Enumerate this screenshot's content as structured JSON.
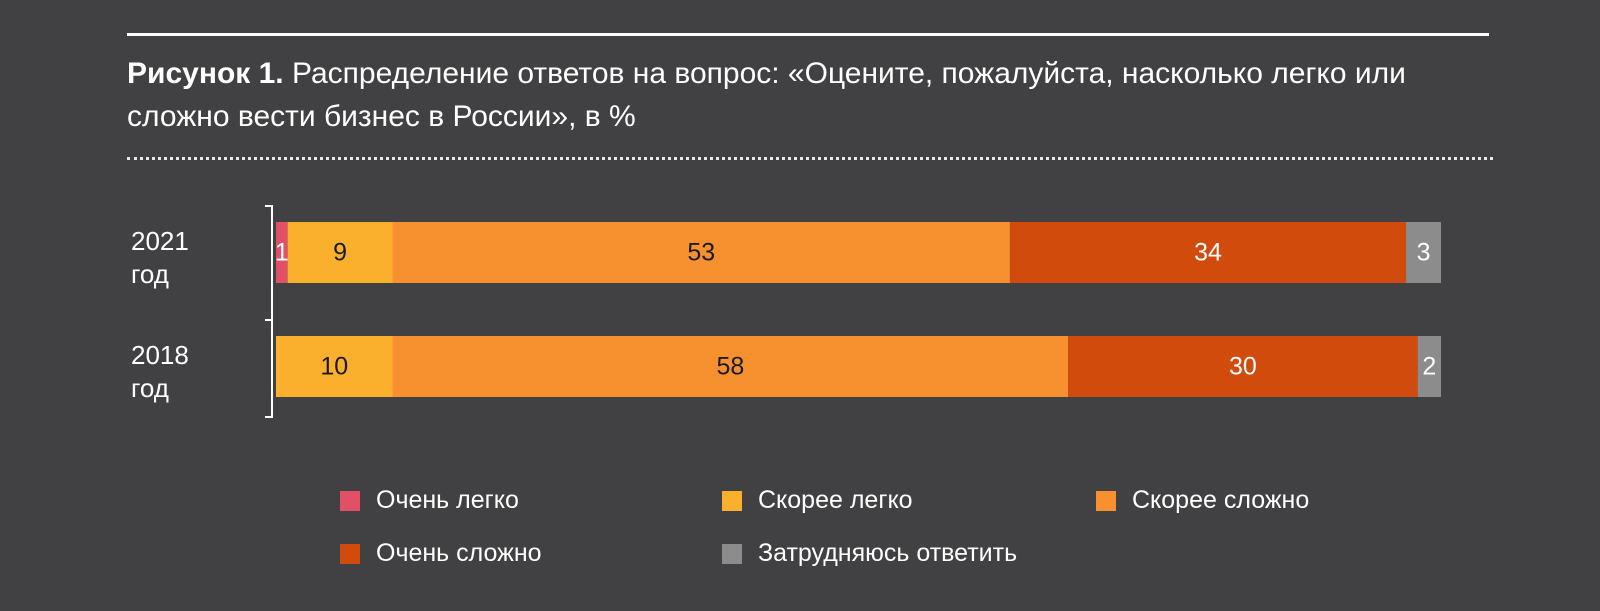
{
  "title": {
    "bold": "Рисунок 1.",
    "text": " Распределение ответов на вопрос: «Оцените, пожалуйста, насколько легко или сложно вести бизнес в России», в %"
  },
  "chart_data": {
    "type": "bar",
    "orientation": "horizontal-stacked-100",
    "categories": [
      [
        "2021",
        "год"
      ],
      [
        "2018",
        "год"
      ]
    ],
    "series": [
      {
        "name": "Очень легко",
        "color": "#e05066",
        "values": [
          1,
          0
        ]
      },
      {
        "name": "Скорее легко",
        "color": "#fbb02d",
        "values": [
          9,
          10
        ]
      },
      {
        "name": "Скорее сложно",
        "color": "#f7902f",
        "values": [
          53,
          58
        ]
      },
      {
        "name": "Очень сложно",
        "color": "#d14b0c",
        "values": [
          34,
          30
        ]
      },
      {
        "name": "Затрудняюсь ответить",
        "color": "#8c8c8c",
        "values": [
          3,
          2
        ]
      }
    ],
    "xlim": [
      0,
      100
    ],
    "legend_position": "bottom"
  }
}
